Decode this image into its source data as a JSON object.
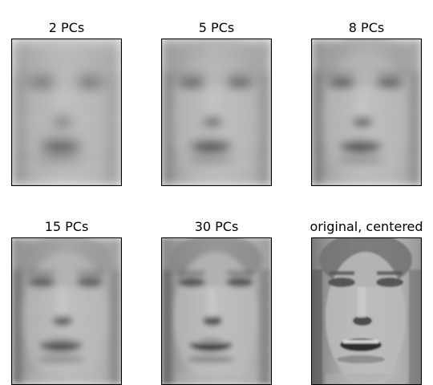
{
  "chart_data": {
    "type": "image-grid",
    "colormap": "gray",
    "axes_ticks": false,
    "panels": [
      {
        "title": "2 PCs",
        "n_components": 2
      },
      {
        "title": "5 PCs",
        "n_components": 5
      },
      {
        "title": "8 PCs",
        "n_components": 8
      },
      {
        "title": "15 PCs",
        "n_components": 15
      },
      {
        "title": "30 PCs",
        "n_components": 30
      },
      {
        "title": "original, centered",
        "n_components": null
      }
    ]
  }
}
